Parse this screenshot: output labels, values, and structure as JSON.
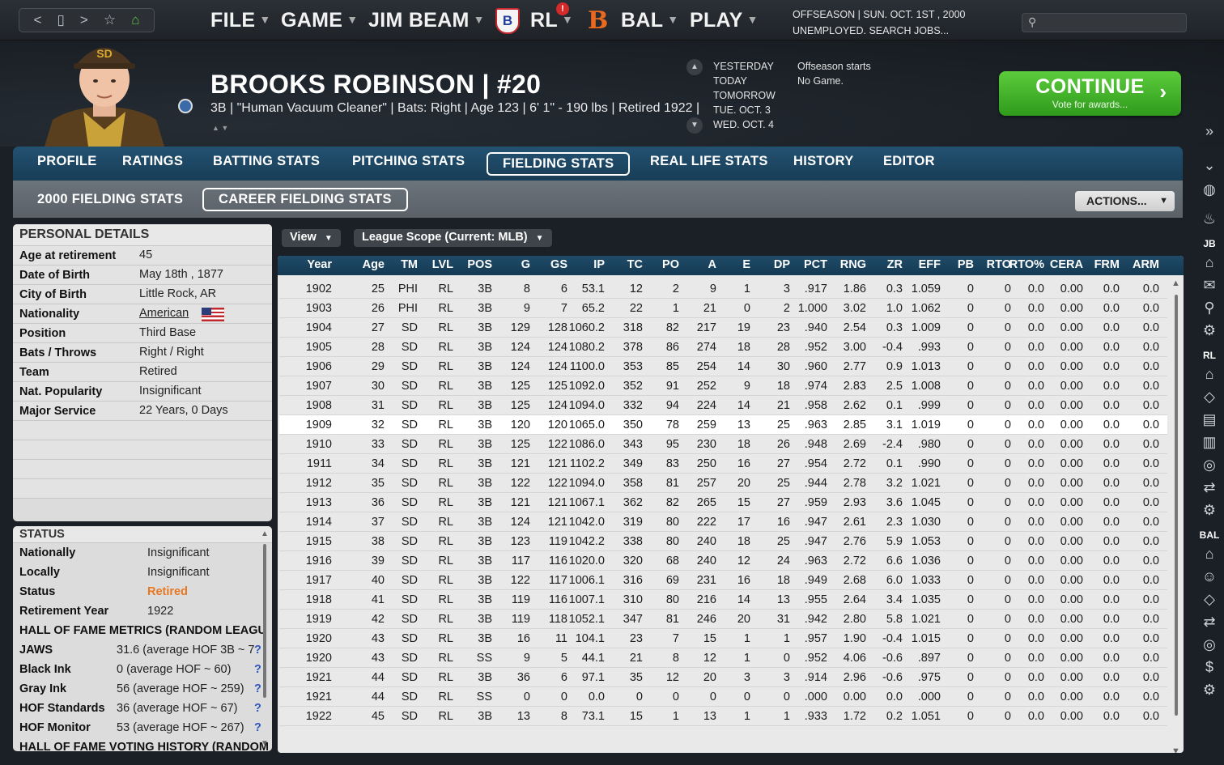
{
  "nav": {
    "back": "<",
    "forward": ">",
    "star": "☆",
    "home": "⌂"
  },
  "menu": {
    "file": "FILE",
    "game": "GAME",
    "jim": "JIM BEAM",
    "rl": "RL",
    "bal": "BAL",
    "play": "PLAY",
    "badge": "!",
    "rl_logo": "B",
    "bal_logo": "B"
  },
  "season": {
    "line1": "OFFSEASON | SUN. OCT. 1ST , 2000",
    "line2": "UNEMPLOYED. SEARCH JOBS..."
  },
  "search": {
    "placeholder": ""
  },
  "player": {
    "name": "BROOKS ROBINSON | #20",
    "info": "3B | \"Human Vacuum Cleaner\" | Bats: Right | Age 123 | 6' 1\" - 190 lbs | Retired 1922 |"
  },
  "calendar": {
    "days": [
      "YESTERDAY",
      "TODAY",
      "TOMORROW",
      "TUE. OCT. 3",
      "WED. OCT. 4"
    ],
    "events": [
      "Offseason starts",
      "No Game."
    ]
  },
  "continue": {
    "label": "CONTINUE",
    "sub": "Vote for awards..."
  },
  "tabs": [
    "PROFILE",
    "RATINGS",
    "BATTING STATS",
    "PITCHING STATS",
    "FIELDING STATS",
    "REAL LIFE STATS",
    "HISTORY",
    "EDITOR"
  ],
  "subtabs": [
    "2000 FIELDING STATS",
    "CAREER FIELDING STATS"
  ],
  "actions": "ACTIONS...",
  "personal": {
    "title": "PERSONAL DETAILS",
    "rows": [
      [
        "Age at retirement",
        "45"
      ],
      [
        "Date of Birth",
        "May 18th , 1877"
      ],
      [
        "City of Birth",
        "Little Rock, AR"
      ],
      [
        "Nationality",
        "American"
      ],
      [
        "Position",
        "Third Base"
      ],
      [
        "Bats / Throws",
        "Right / Right"
      ],
      [
        "Team",
        "Retired"
      ],
      [
        "Nat. Popularity",
        "Insignificant"
      ],
      [
        "Major Service",
        "22 Years, 0 Days"
      ]
    ]
  },
  "status": {
    "title": "STATUS",
    "rows": [
      [
        "Nationally",
        "Insignificant"
      ],
      [
        "Locally",
        "Insignificant"
      ],
      [
        "Status",
        "Retired"
      ],
      [
        "Retirement Year",
        "1922"
      ]
    ],
    "hof_title": "HALL OF FAME METRICS (RANDOM LEAGU",
    "hof": [
      [
        "JAWS",
        "31.6 (average HOF 3B ~ 7"
      ],
      [
        "Black Ink",
        "0 (average HOF ~ 60)"
      ],
      [
        "Gray Ink",
        "56 (average HOF ~ 259)"
      ],
      [
        "HOF Standards",
        "36 (average HOF ~ 67)"
      ],
      [
        "HOF Monitor",
        "53 (average HOF ~ 267)"
      ]
    ],
    "hof_vote_title": "HALL OF FAME VOTING HISTORY (RANDOM",
    "q": "?",
    "status_color": "#e87722"
  },
  "view": "View",
  "scope": "League Scope (Current: MLB)",
  "columns": [
    "Year",
    "Age",
    "TM",
    "LVL",
    "POS",
    "G",
    "GS",
    "IP",
    "TC",
    "PO",
    "A",
    "E",
    "DP",
    "PCT",
    "RNG",
    "ZR",
    "EFF",
    "PB",
    "RTO",
    "RTO%",
    "CERA",
    "FRM",
    "ARM"
  ],
  "rows": [
    [
      "1902",
      "25",
      "PHI",
      "RL",
      "3B",
      "8",
      "6",
      "53.1",
      "12",
      "2",
      "9",
      "1",
      "3",
      ".917",
      "1.86",
      "0.3",
      "1.059",
      "0",
      "0",
      "0.0",
      "0.00",
      "0.0",
      "0.0"
    ],
    [
      "1903",
      "26",
      "PHI",
      "RL",
      "3B",
      "9",
      "7",
      "65.2",
      "22",
      "1",
      "21",
      "0",
      "2",
      "1.000",
      "3.02",
      "1.0",
      "1.062",
      "0",
      "0",
      "0.0",
      "0.00",
      "0.0",
      "0.0"
    ],
    [
      "1904",
      "27",
      "SD",
      "RL",
      "3B",
      "129",
      "128",
      "1060.2",
      "318",
      "82",
      "217",
      "19",
      "23",
      ".940",
      "2.54",
      "0.3",
      "1.009",
      "0",
      "0",
      "0.0",
      "0.00",
      "0.0",
      "0.0"
    ],
    [
      "1905",
      "28",
      "SD",
      "RL",
      "3B",
      "124",
      "124",
      "1080.2",
      "378",
      "86",
      "274",
      "18",
      "28",
      ".952",
      "3.00",
      "-0.4",
      ".993",
      "0",
      "0",
      "0.0",
      "0.00",
      "0.0",
      "0.0"
    ],
    [
      "1906",
      "29",
      "SD",
      "RL",
      "3B",
      "124",
      "124",
      "1100.0",
      "353",
      "85",
      "254",
      "14",
      "30",
      ".960",
      "2.77",
      "0.9",
      "1.013",
      "0",
      "0",
      "0.0",
      "0.00",
      "0.0",
      "0.0"
    ],
    [
      "1907",
      "30",
      "SD",
      "RL",
      "3B",
      "125",
      "125",
      "1092.0",
      "352",
      "91",
      "252",
      "9",
      "18",
      ".974",
      "2.83",
      "2.5",
      "1.008",
      "0",
      "0",
      "0.0",
      "0.00",
      "0.0",
      "0.0"
    ],
    [
      "1908",
      "31",
      "SD",
      "RL",
      "3B",
      "125",
      "124",
      "1094.0",
      "332",
      "94",
      "224",
      "14",
      "21",
      ".958",
      "2.62",
      "0.1",
      ".999",
      "0",
      "0",
      "0.0",
      "0.00",
      "0.0",
      "0.0"
    ],
    [
      "1909",
      "32",
      "SD",
      "RL",
      "3B",
      "120",
      "120",
      "1065.0",
      "350",
      "78",
      "259",
      "13",
      "25",
      ".963",
      "2.85",
      "3.1",
      "1.019",
      "0",
      "0",
      "0.0",
      "0.00",
      "0.0",
      "0.0"
    ],
    [
      "1910",
      "33",
      "SD",
      "RL",
      "3B",
      "125",
      "122",
      "1086.0",
      "343",
      "95",
      "230",
      "18",
      "26",
      ".948",
      "2.69",
      "-2.4",
      ".980",
      "0",
      "0",
      "0.0",
      "0.00",
      "0.0",
      "0.0"
    ],
    [
      "1911",
      "34",
      "SD",
      "RL",
      "3B",
      "121",
      "121",
      "1102.2",
      "349",
      "83",
      "250",
      "16",
      "27",
      ".954",
      "2.72",
      "0.1",
      ".990",
      "0",
      "0",
      "0.0",
      "0.00",
      "0.0",
      "0.0"
    ],
    [
      "1912",
      "35",
      "SD",
      "RL",
      "3B",
      "122",
      "122",
      "1094.0",
      "358",
      "81",
      "257",
      "20",
      "25",
      ".944",
      "2.78",
      "3.2",
      "1.021",
      "0",
      "0",
      "0.0",
      "0.00",
      "0.0",
      "0.0"
    ],
    [
      "1913",
      "36",
      "SD",
      "RL",
      "3B",
      "121",
      "121",
      "1067.1",
      "362",
      "82",
      "265",
      "15",
      "27",
      ".959",
      "2.93",
      "3.6",
      "1.045",
      "0",
      "0",
      "0.0",
      "0.00",
      "0.0",
      "0.0"
    ],
    [
      "1914",
      "37",
      "SD",
      "RL",
      "3B",
      "124",
      "121",
      "1042.0",
      "319",
      "80",
      "222",
      "17",
      "16",
      ".947",
      "2.61",
      "2.3",
      "1.030",
      "0",
      "0",
      "0.0",
      "0.00",
      "0.0",
      "0.0"
    ],
    [
      "1915",
      "38",
      "SD",
      "RL",
      "3B",
      "123",
      "119",
      "1042.2",
      "338",
      "80",
      "240",
      "18",
      "25",
      ".947",
      "2.76",
      "5.9",
      "1.053",
      "0",
      "0",
      "0.0",
      "0.00",
      "0.0",
      "0.0"
    ],
    [
      "1916",
      "39",
      "SD",
      "RL",
      "3B",
      "117",
      "116",
      "1020.0",
      "320",
      "68",
      "240",
      "12",
      "24",
      ".963",
      "2.72",
      "6.6",
      "1.036",
      "0",
      "0",
      "0.0",
      "0.00",
      "0.0",
      "0.0"
    ],
    [
      "1917",
      "40",
      "SD",
      "RL",
      "3B",
      "122",
      "117",
      "1006.1",
      "316",
      "69",
      "231",
      "16",
      "18",
      ".949",
      "2.68",
      "6.0",
      "1.033",
      "0",
      "0",
      "0.0",
      "0.00",
      "0.0",
      "0.0"
    ],
    [
      "1918",
      "41",
      "SD",
      "RL",
      "3B",
      "119",
      "116",
      "1007.1",
      "310",
      "80",
      "216",
      "14",
      "13",
      ".955",
      "2.64",
      "3.4",
      "1.035",
      "0",
      "0",
      "0.0",
      "0.00",
      "0.0",
      "0.0"
    ],
    [
      "1919",
      "42",
      "SD",
      "RL",
      "3B",
      "119",
      "118",
      "1052.1",
      "347",
      "81",
      "246",
      "20",
      "31",
      ".942",
      "2.80",
      "5.8",
      "1.021",
      "0",
      "0",
      "0.0",
      "0.00",
      "0.0",
      "0.0"
    ],
    [
      "1920",
      "43",
      "SD",
      "RL",
      "3B",
      "16",
      "11",
      "104.1",
      "23",
      "7",
      "15",
      "1",
      "1",
      ".957",
      "1.90",
      "-0.4",
      "1.015",
      "0",
      "0",
      "0.0",
      "0.00",
      "0.0",
      "0.0"
    ],
    [
      "1920",
      "43",
      "SD",
      "RL",
      "SS",
      "9",
      "5",
      "44.1",
      "21",
      "8",
      "12",
      "1",
      "0",
      ".952",
      "4.06",
      "-0.6",
      ".897",
      "0",
      "0",
      "0.0",
      "0.00",
      "0.0",
      "0.0"
    ],
    [
      "1921",
      "44",
      "SD",
      "RL",
      "3B",
      "36",
      "6",
      "97.1",
      "35",
      "12",
      "20",
      "3",
      "3",
      ".914",
      "2.96",
      "-0.6",
      ".975",
      "0",
      "0",
      "0.0",
      "0.00",
      "0.0",
      "0.0"
    ],
    [
      "1921",
      "44",
      "SD",
      "RL",
      "SS",
      "0",
      "0",
      "0.0",
      "0",
      "0",
      "0",
      "0",
      "0",
      ".000",
      "0.00",
      "0.0",
      ".000",
      "0",
      "0",
      "0.0",
      "0.00",
      "0.0",
      "0.0"
    ],
    [
      "1922",
      "45",
      "SD",
      "RL",
      "3B",
      "13",
      "8",
      "73.1",
      "15",
      "1",
      "13",
      "1",
      "1",
      ".933",
      "1.72",
      "0.2",
      "1.051",
      "0",
      "0",
      "0.0",
      "0.00",
      "0.0",
      "0.0"
    ]
  ],
  "selected_row": 7,
  "side": {
    "labels": [
      "JB",
      "RL",
      "BAL"
    ]
  }
}
